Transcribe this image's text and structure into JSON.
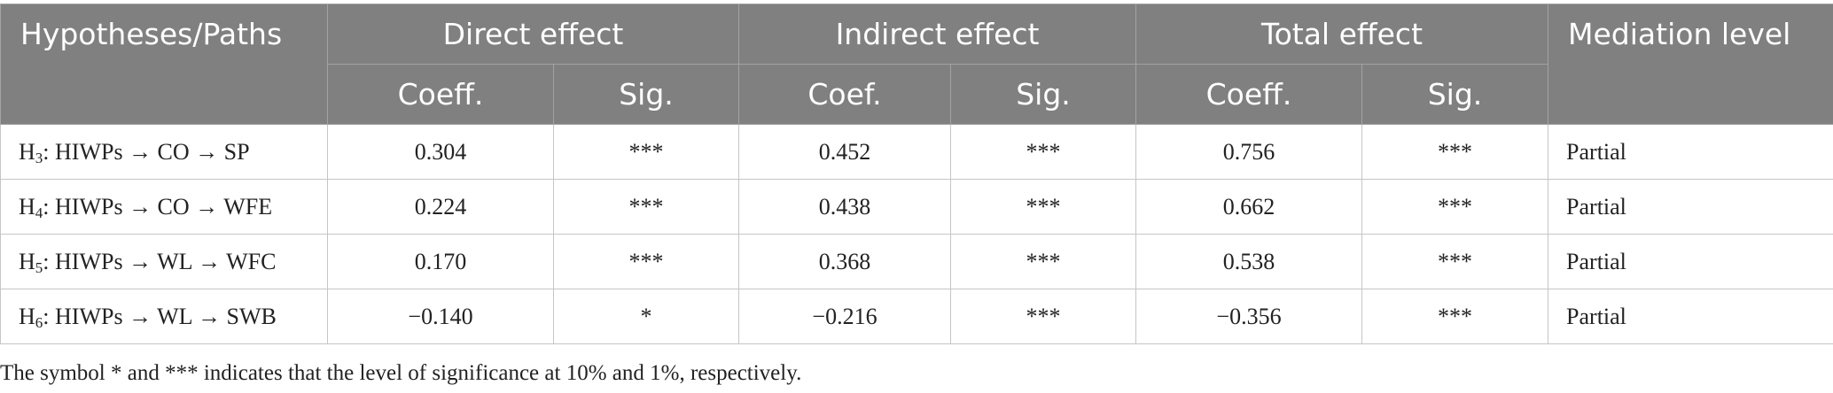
{
  "table": {
    "headers": {
      "paths": "Hypotheses/Paths",
      "direct": "Direct effect",
      "indirect": "Indirect effect",
      "total": "Total effect",
      "mediation": "Mediation level",
      "direct_coef": "Coeff.",
      "direct_sig": "Sig.",
      "indirect_coef": "Coef.",
      "indirect_sig": "Sig.",
      "total_coef": "Coeff.",
      "total_sig": "Sig."
    },
    "rows": [
      {
        "h_letter": "H",
        "h_sub": "3",
        "path": ": HIWPs → CO → SP",
        "direct_coef": "0.304",
        "direct_sig": "***",
        "indirect_coef": "0.452",
        "indirect_sig": "***",
        "total_coef": "0.756",
        "total_sig": "***",
        "mediation": "Partial"
      },
      {
        "h_letter": "H",
        "h_sub": "4",
        "path": ": HIWPs → CO → WFE",
        "direct_coef": "0.224",
        "direct_sig": "***",
        "indirect_coef": "0.438",
        "indirect_sig": "***",
        "total_coef": "0.662",
        "total_sig": "***",
        "mediation": "Partial"
      },
      {
        "h_letter": "H",
        "h_sub": "5",
        "path": ": HIWPs → WL → WFC",
        "direct_coef": "0.170",
        "direct_sig": "***",
        "indirect_coef": "0.368",
        "indirect_sig": "***",
        "total_coef": "0.538",
        "total_sig": "***",
        "mediation": "Partial"
      },
      {
        "h_letter": "H",
        "h_sub": "6",
        "path": ": HIWPs → WL → SWB",
        "direct_coef": "−0.140",
        "direct_sig": "*",
        "indirect_coef": "−0.216",
        "indirect_sig": "***",
        "total_coef": "−0.356",
        "total_sig": "***",
        "mediation": "Partial"
      }
    ]
  },
  "footnote": "The symbol * and *** indicates that the level of significance at 10% and 1%, respectively."
}
